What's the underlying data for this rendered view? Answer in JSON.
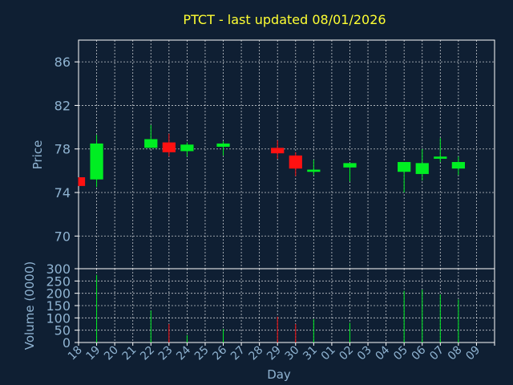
{
  "title": "PTCT - last updated 08/01/2026",
  "colors": {
    "background": "#0f1f33",
    "title": "#ffff33",
    "axis": "#ffffff",
    "label": "#8fb3d1",
    "up": "#00ee22",
    "down": "#ff1111"
  },
  "chart_data": [
    {
      "type": "candlestick",
      "title": "PTCT - last updated 08/01/2026",
      "ylabel": "Price",
      "ylim": [
        67,
        88
      ],
      "yticks": [
        70,
        74,
        78,
        82,
        86
      ],
      "grid": true,
      "categories": [
        "18",
        "19",
        "20",
        "21",
        "22",
        "23",
        "24",
        "25",
        "26",
        "27",
        "28",
        "29",
        "30",
        "31",
        "01",
        "02",
        "03",
        "04",
        "05",
        "06",
        "07",
        "08",
        "09"
      ],
      "candles": [
        {
          "day": "18",
          "open": 75.4,
          "close": 74.6,
          "high": 75.4,
          "low": 74.6
        },
        {
          "day": "19",
          "open": 75.2,
          "close": 78.5,
          "high": 79.3,
          "low": 74.5
        },
        {
          "day": "22",
          "open": 78.1,
          "close": 78.9,
          "high": 80.2,
          "low": 78.1
        },
        {
          "day": "23",
          "open": 78.6,
          "close": 77.7,
          "high": 79.4,
          "low": 77.3
        },
        {
          "day": "24",
          "open": 77.8,
          "close": 78.4,
          "high": 78.6,
          "low": 77.3
        },
        {
          "day": "26",
          "open": 78.2,
          "close": 78.5,
          "high": 78.7,
          "low": 77.4
        },
        {
          "day": "29",
          "open": 78.1,
          "close": 77.6,
          "high": 78.8,
          "low": 77.1
        },
        {
          "day": "30",
          "open": 77.4,
          "close": 76.2,
          "high": 77.7,
          "low": 75.5
        },
        {
          "day": "31",
          "open": 75.9,
          "close": 76.1,
          "high": 77.0,
          "low": 75.6
        },
        {
          "day": "02",
          "open": 76.3,
          "close": 76.7,
          "high": 76.7,
          "low": 75.0
        },
        {
          "day": "05",
          "open": 75.9,
          "close": 76.8,
          "high": 76.8,
          "low": 74.0
        },
        {
          "day": "06",
          "open": 75.7,
          "close": 76.7,
          "high": 78.0,
          "low": 75.1
        },
        {
          "day": "07",
          "open": 77.1,
          "close": 77.3,
          "high": 79.0,
          "low": 76.8
        },
        {
          "day": "08",
          "open": 76.2,
          "close": 76.8,
          "high": 77.3,
          "low": 75.6
        }
      ]
    },
    {
      "type": "bar",
      "ylabel": "Volume (0000)",
      "xlabel": "Day",
      "ylim": [
        0,
        300
      ],
      "yticks": [
        0,
        50,
        100,
        150,
        200,
        250,
        300
      ],
      "grid": true,
      "categories": [
        "18",
        "19",
        "20",
        "21",
        "22",
        "23",
        "24",
        "25",
        "26",
        "27",
        "28",
        "29",
        "30",
        "31",
        "01",
        "02",
        "03",
        "04",
        "05",
        "06",
        "07",
        "08",
        "09"
      ],
      "bars": [
        {
          "day": "18",
          "value": 0,
          "direction": "down"
        },
        {
          "day": "19",
          "value": 275,
          "direction": "up"
        },
        {
          "day": "22",
          "value": 130,
          "direction": "up"
        },
        {
          "day": "23",
          "value": 75,
          "direction": "down"
        },
        {
          "day": "24",
          "value": 30,
          "direction": "up"
        },
        {
          "day": "26",
          "value": 55,
          "direction": "up"
        },
        {
          "day": "29",
          "value": 105,
          "direction": "down"
        },
        {
          "day": "30",
          "value": 75,
          "direction": "down"
        },
        {
          "day": "31",
          "value": 95,
          "direction": "up"
        },
        {
          "day": "02",
          "value": 80,
          "direction": "up"
        },
        {
          "day": "05",
          "value": 210,
          "direction": "up"
        },
        {
          "day": "06",
          "value": 215,
          "direction": "up"
        },
        {
          "day": "07",
          "value": 195,
          "direction": "up"
        },
        {
          "day": "08",
          "value": 175,
          "direction": "up"
        }
      ]
    }
  ]
}
